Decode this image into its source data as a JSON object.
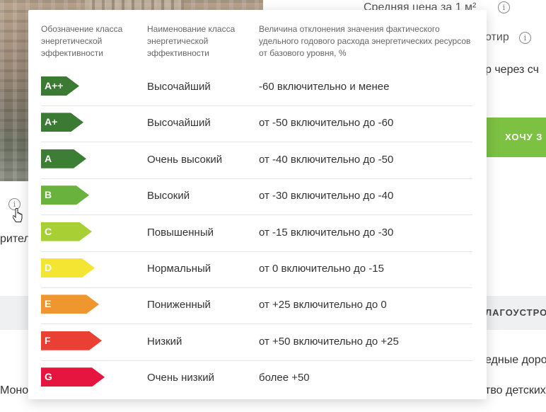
{
  "background": {
    "avg_price": "Средняя цена за 1 м²",
    "view": "отир",
    "through": "р через сч",
    "cta": "ХОЧУ З",
    "band": "ЛАГОУСТРО",
    "roads": "едные доро",
    "kids": "тво детских",
    "mono": "Моно",
    "ritel": "ритель"
  },
  "popup": {
    "headers": {
      "designation": "Обозначение класса энергетической эффективности",
      "name": "Наименование класса энергетической эффективности",
      "deviation": "Величина отклонения значения фактического удельного годового расхода энергетических ресурсов от базового уровня, %"
    },
    "rows": [
      {
        "cls": "A++",
        "name": "Высочайший",
        "range": "-60 включительно и менее",
        "color": "#3a7a32"
      },
      {
        "cls": "A+",
        "name": "Высочайший",
        "range": "от -50 включительно до -60",
        "color": "#3a7a32"
      },
      {
        "cls": "A",
        "name": "Очень высокий",
        "range": "от -40 включительно до -50",
        "color": "#3d7e35"
      },
      {
        "cls": "B",
        "name": "Высокий",
        "range": "от -30 включительно до -40",
        "color": "#6ab23e"
      },
      {
        "cls": "C",
        "name": "Повышенный",
        "range": "от -15 включительно до -30",
        "color": "#a8d034"
      },
      {
        "cls": "D",
        "name": "Нормальный",
        "range": "от 0 включительно до -15",
        "color": "#f3e531"
      },
      {
        "cls": "E",
        "name": "Пониженный",
        "range": "от +25 включительно до 0",
        "color": "#f0962e"
      },
      {
        "cls": "F",
        "name": "Низкий",
        "range": "от +50 включительно до +25",
        "color": "#e94033"
      },
      {
        "cls": "G",
        "name": "Очень низкий",
        "range": "более +50",
        "color": "#e6153f"
      }
    ]
  }
}
